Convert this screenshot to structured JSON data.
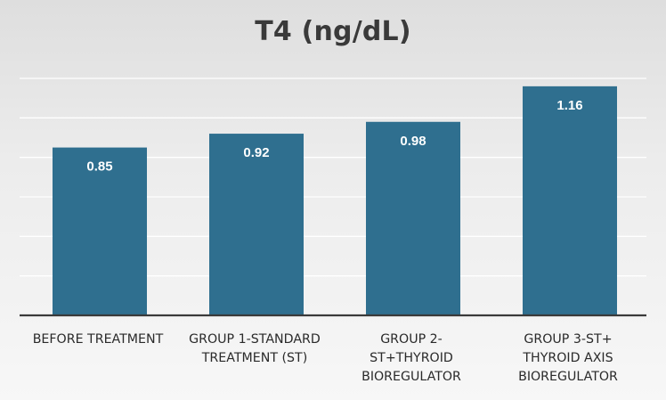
{
  "chart_data": {
    "type": "bar",
    "title": "T4 (ng/dL)",
    "categories": [
      [
        "BEFORE TREATMENT"
      ],
      [
        "GROUP 1-STANDARD",
        "TREATMENT (ST)"
      ],
      [
        "GROUP 2-",
        "ST+THYROID",
        "BIOREGULATOR"
      ],
      [
        "GROUP 3-ST+",
        "THYROID AXIS",
        "BIOREGULATOR"
      ]
    ],
    "values": [
      0.85,
      0.92,
      0.98,
      1.16
    ],
    "data_labels": [
      "0.85",
      "0.92",
      "0.98",
      "1.16"
    ],
    "ylim": [
      0,
      1.2
    ],
    "grid": true,
    "grid_step": 0.2,
    "legend": "none",
    "xlabel": "",
    "ylabel": "",
    "bar_color": "#2f6f8f",
    "label_color": "#ffffff",
    "axis_color": "#3a3a3a",
    "background_top": "#dedede",
    "background_bottom": "#f7f7f7"
  }
}
